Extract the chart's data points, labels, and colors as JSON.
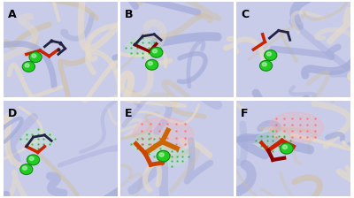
{
  "panels": [
    "A",
    "B",
    "C",
    "D",
    "E",
    "F"
  ],
  "bg_color": "#c8cce8",
  "bg_deep": "#a0a8d8",
  "protein_color": "#b8bce0",
  "protein_highlight": "#e8dcc8",
  "green_sphere_color": "#22cc22",
  "green_sphere_edge": "#118811",
  "panel_label_color": "#000000",
  "panel_label_fontsize": 9,
  "red_color": "#cc2200",
  "dark_color": "#222244",
  "orange_color": "#cc6600",
  "brown_color": "#8b4513",
  "pink_mesh_color": "#ffaaaa",
  "green_mesh_color": "#aaffaa",
  "white_color": "#ffffff",
  "figsize": [
    4.0,
    2.24
  ],
  "dpi": 100
}
